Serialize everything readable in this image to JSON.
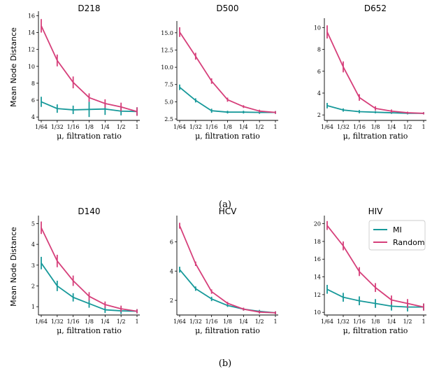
{
  "colors": {
    "MI": "#17999a",
    "Random": "#d63f7a"
  },
  "captions": [
    "(a)",
    "(b)"
  ],
  "x_categories": [
    "1/64",
    "1/32",
    "1/16",
    "1/8",
    "1/4",
    "1/2",
    "1"
  ],
  "xlabel": "μ, filtration ratio",
  "ylabel": "Mean Node Distance",
  "legend": {
    "placement": "top-right",
    "panel": "HIV",
    "entries": [
      "MI",
      "Random"
    ]
  },
  "chart_data": [
    {
      "type": "line",
      "title": "D218",
      "ylim": [
        3.6,
        16.2
      ],
      "yticks": [
        "4",
        "6",
        "8",
        "10",
        "12",
        "14",
        "16"
      ],
      "ytick_values": [
        4,
        6,
        8,
        10,
        12,
        14,
        16
      ],
      "series": [
        {
          "name": "MI",
          "values": [
            5.8,
            5.0,
            4.85,
            4.9,
            4.95,
            4.7,
            4.65
          ],
          "errors": [
            0.6,
            0.5,
            0.5,
            0.9,
            0.7,
            0.5,
            0.5
          ]
        },
        {
          "name": "Random",
          "values": [
            14.8,
            10.7,
            8.1,
            6.3,
            5.6,
            5.2,
            4.65
          ],
          "errors": [
            0.8,
            0.7,
            0.7,
            0.5,
            0.5,
            0.5,
            0.5
          ]
        }
      ]
    },
    {
      "type": "line",
      "title": "D500",
      "ylim": [
        2.3,
        16.3
      ],
      "yticks": [
        "2.5",
        "5.0",
        "7.5",
        "10.0",
        "12.5",
        "15.0"
      ],
      "ytick_values": [
        2.5,
        5.0,
        7.5,
        10.0,
        12.5,
        15.0
      ],
      "series": [
        {
          "name": "MI",
          "values": [
            7.1,
            5.2,
            3.7,
            3.5,
            3.5,
            3.45,
            3.45
          ],
          "errors": [
            0.4,
            0.3,
            0.3,
            0.2,
            0.2,
            0.2,
            0.2
          ]
        },
        {
          "name": "Random",
          "values": [
            15.1,
            11.6,
            8.0,
            5.3,
            4.3,
            3.65,
            3.45
          ],
          "errors": [
            0.7,
            0.5,
            0.4,
            0.3,
            0.2,
            0.2,
            0.2
          ]
        }
      ]
    },
    {
      "type": "line",
      "title": "D652",
      "ylim": [
        1.5,
        10.6
      ],
      "yticks": [
        "2",
        "4",
        "6",
        "8",
        "10"
      ],
      "ytick_values": [
        2,
        4,
        6,
        8,
        10
      ],
      "series": [
        {
          "name": "MI",
          "values": [
            2.85,
            2.45,
            2.3,
            2.25,
            2.2,
            2.15,
            2.15
          ],
          "errors": [
            0.25,
            0.15,
            0.15,
            0.1,
            0.1,
            0.1,
            0.1
          ]
        },
        {
          "name": "Random",
          "values": [
            9.6,
            6.4,
            3.6,
            2.6,
            2.35,
            2.2,
            2.15
          ],
          "errors": [
            0.6,
            0.5,
            0.3,
            0.2,
            0.15,
            0.1,
            0.1
          ]
        }
      ]
    },
    {
      "type": "line",
      "title": "D140",
      "ylim": [
        0.6,
        5.25
      ],
      "yticks": [
        "1",
        "2",
        "3",
        "4",
        "5"
      ],
      "ytick_values": [
        1,
        2,
        3,
        4,
        5
      ],
      "series": [
        {
          "name": "MI",
          "values": [
            3.1,
            2.0,
            1.45,
            1.15,
            0.85,
            0.8,
            0.78
          ],
          "errors": [
            0.3,
            0.25,
            0.2,
            0.2,
            0.15,
            0.15,
            0.1
          ]
        },
        {
          "name": "Random",
          "values": [
            4.8,
            3.2,
            2.25,
            1.5,
            1.1,
            0.9,
            0.78
          ],
          "errors": [
            0.3,
            0.3,
            0.25,
            0.2,
            0.15,
            0.15,
            0.1
          ]
        }
      ]
    },
    {
      "type": "line",
      "title": "HCV",
      "ylim": [
        1.0,
        7.6
      ],
      "yticks": [
        "2",
        "4",
        "6"
      ],
      "ytick_values": [
        2,
        4,
        6
      ],
      "series": [
        {
          "name": "MI",
          "values": [
            4.1,
            2.8,
            2.1,
            1.65,
            1.4,
            1.25,
            1.15
          ],
          "errors": [
            0.2,
            0.15,
            0.15,
            0.1,
            0.1,
            0.1,
            0.1
          ]
        },
        {
          "name": "Random",
          "values": [
            7.1,
            4.5,
            2.6,
            1.8,
            1.4,
            1.2,
            1.15
          ],
          "errors": [
            0.2,
            0.15,
            0.15,
            0.1,
            0.1,
            0.1,
            0.1
          ]
        }
      ]
    },
    {
      "type": "line",
      "title": "HIV",
      "ylim": [
        9.7,
        20.6
      ],
      "yticks": [
        "10",
        "12",
        "14",
        "16",
        "18",
        "20"
      ],
      "ytick_values": [
        10,
        12,
        14,
        16,
        18,
        20
      ],
      "series": [
        {
          "name": "MI",
          "values": [
            12.6,
            11.7,
            11.3,
            11.0,
            10.7,
            10.6,
            10.6
          ],
          "errors": [
            0.5,
            0.5,
            0.5,
            0.5,
            0.5,
            0.5,
            0.4
          ]
        },
        {
          "name": "Random",
          "values": [
            19.8,
            17.5,
            14.6,
            12.8,
            11.4,
            11.0,
            10.6
          ],
          "errors": [
            0.5,
            0.5,
            0.5,
            0.5,
            0.5,
            0.5,
            0.4
          ]
        }
      ]
    }
  ]
}
